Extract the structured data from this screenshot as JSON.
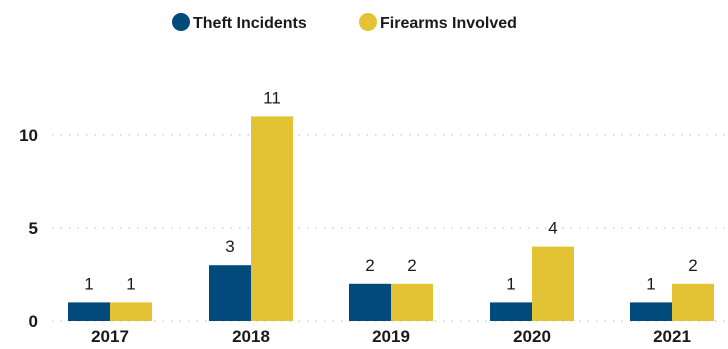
{
  "chart_data": {
    "type": "bar",
    "categories": [
      "2017",
      "2018",
      "2019",
      "2020",
      "2021"
    ],
    "series": [
      {
        "name": "Theft Incidents",
        "color": "#004a7c",
        "values": [
          1,
          3,
          2,
          1,
          1
        ]
      },
      {
        "name": "Firearms Involved",
        "color": "#e3c334",
        "values": [
          1,
          11,
          2,
          4,
          2
        ]
      }
    ],
    "yticks": [
      "0",
      "5",
      "10"
    ],
    "ylim": [
      0,
      11
    ],
    "grid": true,
    "legend_position": "top-center",
    "data_labels": true
  }
}
